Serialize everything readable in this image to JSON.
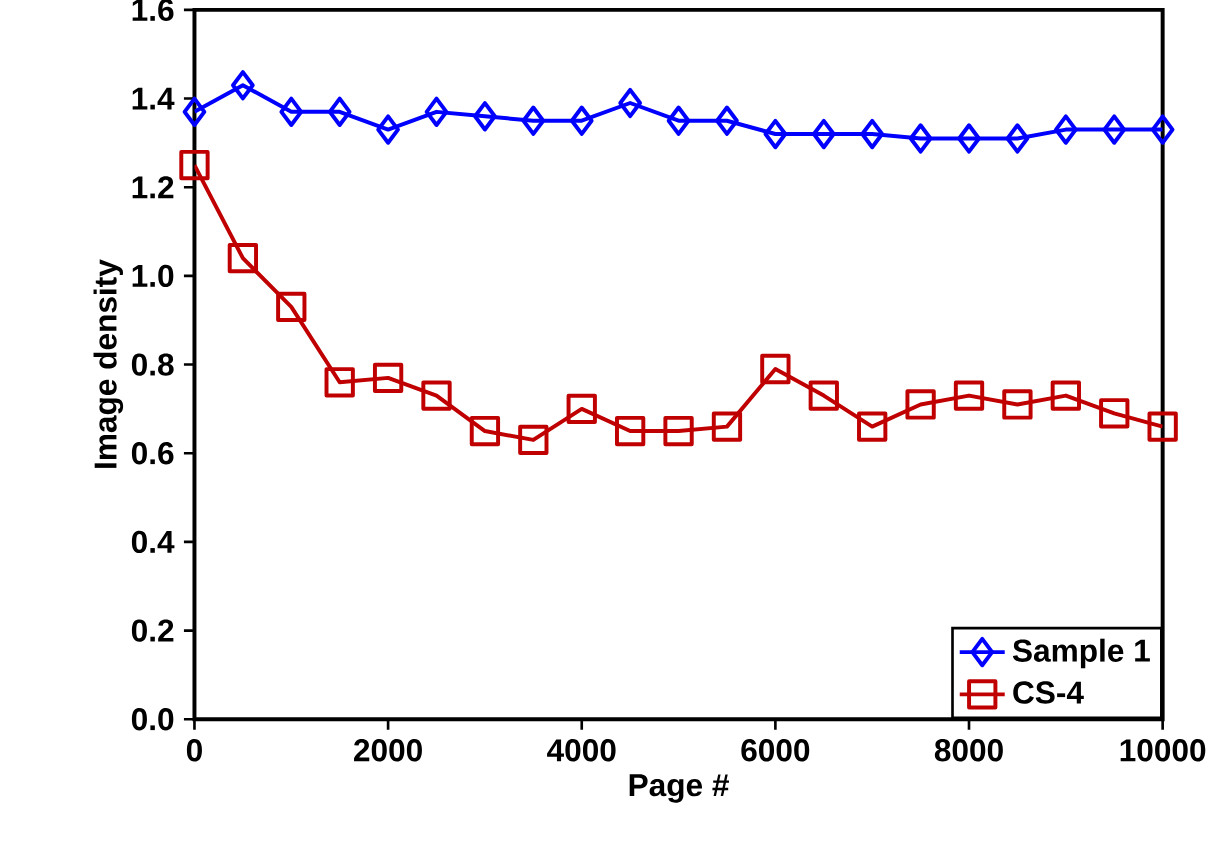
{
  "chart_data": {
    "type": "line",
    "xlabel": "Page #",
    "ylabel": "Image density",
    "x": [
      0,
      500,
      1000,
      1500,
      2000,
      2500,
      3000,
      3500,
      4000,
      4500,
      5000,
      5500,
      6000,
      6500,
      7000,
      7500,
      8000,
      8500,
      9000,
      9500,
      10000
    ],
    "series": [
      {
        "name": "Sample 1",
        "color": "#0000ff",
        "marker": "diamond",
        "values": [
          1.37,
          1.43,
          1.37,
          1.37,
          1.33,
          1.37,
          1.36,
          1.35,
          1.35,
          1.39,
          1.35,
          1.35,
          1.32,
          1.32,
          1.32,
          1.31,
          1.31,
          1.31,
          1.33,
          1.33,
          1.33
        ]
      },
      {
        "name": "CS-4",
        "color": "#c00000",
        "marker": "square",
        "values": [
          1.25,
          1.04,
          0.93,
          0.76,
          0.77,
          0.73,
          0.65,
          0.63,
          0.7,
          0.65,
          0.65,
          0.66,
          0.79,
          0.73,
          0.66,
          0.71,
          0.73,
          0.71,
          0.73,
          0.69,
          0.66
        ]
      }
    ],
    "xlim": [
      0,
      10000
    ],
    "xticks": [
      0,
      2000,
      4000,
      6000,
      8000,
      10000
    ],
    "ylim": [
      0,
      1.6
    ],
    "yticks": [
      {
        "value": 0,
        "label": "0.0"
      },
      {
        "value": 0.2,
        "label": "0.2"
      },
      {
        "value": 0.4,
        "label": "0.4"
      },
      {
        "value": 0.6,
        "label": "0.6"
      },
      {
        "value": 0.8,
        "label": "0.8"
      },
      {
        "value": 1.0,
        "label": "1.0"
      },
      {
        "value": 1.2,
        "label": "1.2"
      },
      {
        "value": 1.4,
        "label": "1.4"
      },
      {
        "value": 1.6,
        "label": "1.6"
      }
    ],
    "grid": false,
    "legend": "bottom right",
    "line_style": "solid"
  }
}
